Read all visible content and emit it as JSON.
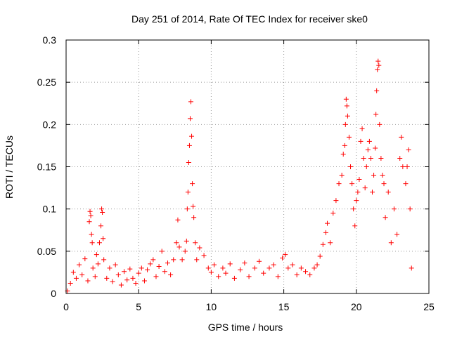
{
  "chart_data": {
    "type": "scatter",
    "title": "Day 251 of 2014, Rate Of TEC Index for receiver ske0",
    "xlabel": "GPS time / hours",
    "ylabel": "ROTI / TECUs",
    "xlim": [
      0,
      25
    ],
    "ylim": [
      0,
      0.3
    ],
    "x_ticks": [
      0,
      5,
      10,
      15,
      20,
      25
    ],
    "x_tick_labels": [
      "0",
      "5",
      "10",
      "15",
      "20",
      "25"
    ],
    "y_ticks": [
      0,
      0.05,
      0.1,
      0.15,
      0.2,
      0.25,
      0.3
    ],
    "y_tick_labels": [
      "0",
      "0.05",
      "0.1",
      "0.15",
      "0.2",
      "0.25",
      "0.3"
    ],
    "grid": true,
    "marker": "+",
    "color": "#ff0000",
    "series": [
      {
        "points": [
          [
            0.1,
            0.003
          ],
          [
            0.3,
            0.012
          ],
          [
            0.5,
            0.025
          ],
          [
            0.7,
            0.018
          ],
          [
            0.9,
            0.034
          ],
          [
            1.1,
            0.022
          ],
          [
            1.3,
            0.041
          ],
          [
            1.5,
            0.015
          ],
          [
            1.6,
            0.085
          ],
          [
            1.65,
            0.097
          ],
          [
            1.7,
            0.092
          ],
          [
            1.75,
            0.07
          ],
          [
            1.8,
            0.06
          ],
          [
            1.85,
            0.03
          ],
          [
            2.0,
            0.02
          ],
          [
            2.1,
            0.046
          ],
          [
            2.2,
            0.035
          ],
          [
            2.3,
            0.06
          ],
          [
            2.4,
            0.08
          ],
          [
            2.45,
            0.1
          ],
          [
            2.5,
            0.096
          ],
          [
            2.55,
            0.065
          ],
          [
            2.6,
            0.04
          ],
          [
            2.8,
            0.018
          ],
          [
            3.0,
            0.03
          ],
          [
            3.2,
            0.014
          ],
          [
            3.4,
            0.034
          ],
          [
            3.6,
            0.022
          ],
          [
            3.8,
            0.01
          ],
          [
            4.0,
            0.026
          ],
          [
            4.2,
            0.016
          ],
          [
            4.4,
            0.029
          ],
          [
            4.6,
            0.018
          ],
          [
            4.8,
            0.012
          ],
          [
            5.0,
            0.024
          ],
          [
            5.2,
            0.03
          ],
          [
            5.4,
            0.015
          ],
          [
            5.6,
            0.028
          ],
          [
            5.8,
            0.035
          ],
          [
            6.0,
            0.04
          ],
          [
            6.2,
            0.02
          ],
          [
            6.4,
            0.032
          ],
          [
            6.6,
            0.05
          ],
          [
            6.8,
            0.026
          ],
          [
            7.0,
            0.036
          ],
          [
            7.2,
            0.022
          ],
          [
            7.4,
            0.04
          ],
          [
            7.6,
            0.06
          ],
          [
            7.7,
            0.087
          ],
          [
            7.8,
            0.055
          ],
          [
            8.0,
            0.04
          ],
          [
            8.2,
            0.05
          ],
          [
            8.3,
            0.062
          ],
          [
            8.35,
            0.1
          ],
          [
            8.4,
            0.12
          ],
          [
            8.45,
            0.155
          ],
          [
            8.5,
            0.175
          ],
          [
            8.55,
            0.207
          ],
          [
            8.6,
            0.227
          ],
          [
            8.65,
            0.186
          ],
          [
            8.7,
            0.13
          ],
          [
            8.75,
            0.103
          ],
          [
            8.8,
            0.09
          ],
          [
            8.9,
            0.06
          ],
          [
            9.0,
            0.04
          ],
          [
            9.2,
            0.054
          ],
          [
            9.5,
            0.045
          ],
          [
            9.8,
            0.03
          ],
          [
            10.0,
            0.025
          ],
          [
            10.2,
            0.034
          ],
          [
            10.5,
            0.02
          ],
          [
            10.8,
            0.03
          ],
          [
            11.0,
            0.024
          ],
          [
            11.3,
            0.035
          ],
          [
            11.6,
            0.018
          ],
          [
            12.0,
            0.028
          ],
          [
            12.3,
            0.036
          ],
          [
            12.6,
            0.02
          ],
          [
            13.0,
            0.03
          ],
          [
            13.3,
            0.038
          ],
          [
            13.6,
            0.024
          ],
          [
            14.0,
            0.03
          ],
          [
            14.3,
            0.034
          ],
          [
            14.6,
            0.02
          ],
          [
            14.9,
            0.042
          ],
          [
            15.1,
            0.046
          ],
          [
            15.3,
            0.03
          ],
          [
            15.6,
            0.034
          ],
          [
            15.9,
            0.022
          ],
          [
            16.2,
            0.03
          ],
          [
            16.5,
            0.026
          ],
          [
            16.8,
            0.022
          ],
          [
            17.1,
            0.03
          ],
          [
            17.3,
            0.034
          ],
          [
            17.5,
            0.044
          ],
          [
            17.7,
            0.058
          ],
          [
            17.9,
            0.072
          ],
          [
            18.0,
            0.083
          ],
          [
            18.2,
            0.06
          ],
          [
            18.4,
            0.095
          ],
          [
            18.6,
            0.11
          ],
          [
            18.8,
            0.13
          ],
          [
            19.0,
            0.14
          ],
          [
            19.1,
            0.165
          ],
          [
            19.2,
            0.175
          ],
          [
            19.25,
            0.2
          ],
          [
            19.3,
            0.23
          ],
          [
            19.35,
            0.222
          ],
          [
            19.4,
            0.21
          ],
          [
            19.5,
            0.185
          ],
          [
            19.6,
            0.15
          ],
          [
            19.7,
            0.13
          ],
          [
            19.8,
            0.1
          ],
          [
            19.9,
            0.08
          ],
          [
            20.0,
            0.11
          ],
          [
            20.1,
            0.12
          ],
          [
            20.2,
            0.135
          ],
          [
            20.3,
            0.18
          ],
          [
            20.4,
            0.195
          ],
          [
            20.5,
            0.16
          ],
          [
            20.6,
            0.125
          ],
          [
            20.7,
            0.15
          ],
          [
            20.8,
            0.17
          ],
          [
            20.9,
            0.18
          ],
          [
            21.0,
            0.16
          ],
          [
            21.1,
            0.12
          ],
          [
            21.2,
            0.14
          ],
          [
            21.3,
            0.172
          ],
          [
            21.35,
            0.212
          ],
          [
            21.4,
            0.24
          ],
          [
            21.45,
            0.265
          ],
          [
            21.5,
            0.275
          ],
          [
            21.55,
            0.27
          ],
          [
            21.6,
            0.2
          ],
          [
            21.7,
            0.16
          ],
          [
            21.8,
            0.14
          ],
          [
            21.9,
            0.13
          ],
          [
            22.0,
            0.09
          ],
          [
            22.2,
            0.12
          ],
          [
            22.4,
            0.06
          ],
          [
            22.6,
            0.1
          ],
          [
            22.8,
            0.07
          ],
          [
            23.0,
            0.16
          ],
          [
            23.1,
            0.185
          ],
          [
            23.2,
            0.15
          ],
          [
            23.4,
            0.13
          ],
          [
            23.5,
            0.15
          ],
          [
            23.6,
            0.17
          ],
          [
            23.7,
            0.1
          ],
          [
            23.8,
            0.03
          ]
        ]
      }
    ]
  }
}
